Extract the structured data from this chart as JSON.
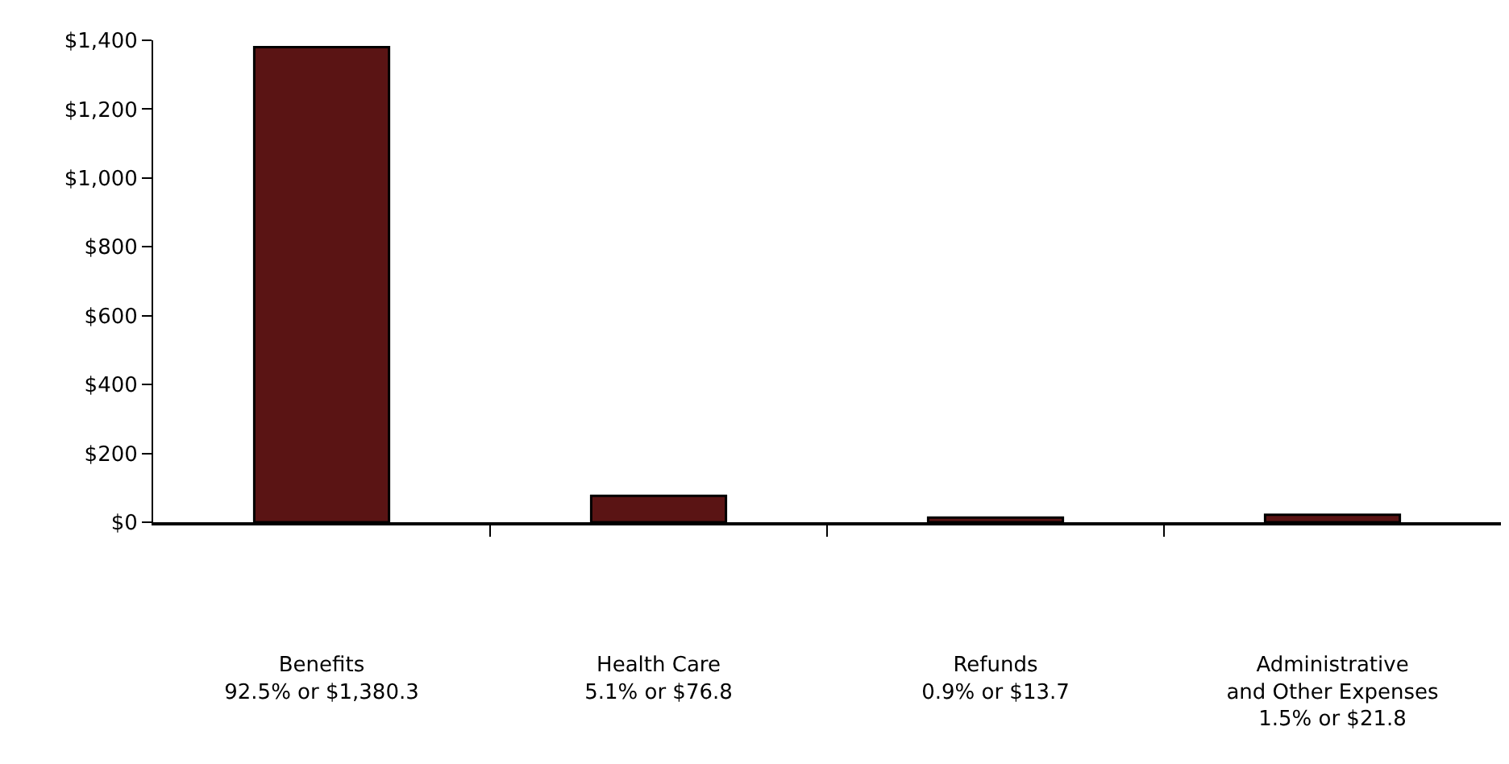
{
  "chart_data": {
    "type": "bar",
    "categories": [
      "Benefits\n92.5% or $1,380.3",
      "Health Care\n5.1% or $76.8",
      "Refunds\n0.9% or $13.7",
      "Administrative\nand Other Expenses\n1.5% or $21.8"
    ],
    "values": [
      1380.3,
      76.8,
      13.7,
      21.8
    ],
    "color": "#5a1414",
    "ylim": [
      0,
      1400
    ],
    "yticks": [
      {
        "value": 0,
        "label": "$0"
      },
      {
        "value": 200,
        "label": "$200"
      },
      {
        "value": 400,
        "label": "$400"
      },
      {
        "value": 600,
        "label": "$600"
      },
      {
        "value": 800,
        "label": "$800"
      },
      {
        "value": 1000,
        "label": "$1,000"
      },
      {
        "value": 1200,
        "label": "$1,200"
      },
      {
        "value": 1400,
        "label": "$1,400"
      }
    ]
  }
}
